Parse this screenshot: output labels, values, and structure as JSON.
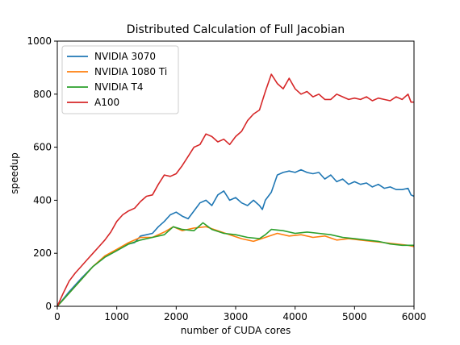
{
  "chart_data": {
    "type": "line",
    "title": "Distributed Calculation of Full Jacobian",
    "xlabel": "number of CUDA cores",
    "ylabel": "speedup",
    "xlim": [
      0,
      6000
    ],
    "ylim": [
      0,
      1000
    ],
    "xticks": [
      "0",
      "1000",
      "2000",
      "3000",
      "4000",
      "5000",
      "6000"
    ],
    "yticks": [
      "0",
      "200",
      "400",
      "600",
      "800",
      "1000"
    ],
    "grid": false,
    "legend_position": "upper-left",
    "series": [
      {
        "name": "NVIDIA 3070",
        "color": "#1f77b4",
        "x": [
          0,
          200,
          400,
          600,
          800,
          1000,
          1200,
          1300,
          1400,
          1500,
          1600,
          1700,
          1800,
          1900,
          2000,
          2100,
          2200,
          2300,
          2400,
          2500,
          2600,
          2700,
          2800,
          2900,
          3000,
          3100,
          3200,
          3300,
          3400,
          3450,
          3500,
          3600,
          3700,
          3800,
          3900,
          4000,
          4100,
          4200,
          4300,
          4400,
          4500,
          4600,
          4700,
          4800,
          4900,
          5000,
          5100,
          5200,
          5300,
          5400,
          5500,
          5600,
          5700,
          5800,
          5900,
          5950,
          6000
        ],
        "y": [
          0,
          55,
          105,
          150,
          185,
          210,
          235,
          240,
          265,
          270,
          275,
          300,
          320,
          345,
          355,
          340,
          330,
          360,
          390,
          400,
          380,
          420,
          435,
          400,
          410,
          390,
          380,
          400,
          380,
          365,
          400,
          430,
          495,
          505,
          510,
          505,
          515,
          505,
          500,
          505,
          480,
          495,
          470,
          480,
          460,
          470,
          460,
          465,
          450,
          460,
          445,
          450,
          440,
          440,
          445,
          420,
          415
        ]
      },
      {
        "name": "NVIDIA 1080 Ti",
        "color": "#ff7f0e",
        "x": [
          0,
          200,
          400,
          600,
          800,
          1000,
          1200,
          1400,
          1600,
          1800,
          1950,
          2100,
          2300,
          2500,
          2700,
          2900,
          3100,
          3300,
          3500,
          3700,
          3900,
          4100,
          4300,
          4500,
          4700,
          4900,
          5100,
          5300,
          5500,
          5700,
          5900,
          6000
        ],
        "y": [
          0,
          50,
          100,
          150,
          190,
          215,
          240,
          260,
          260,
          280,
          300,
          285,
          295,
          300,
          285,
          270,
          255,
          245,
          260,
          275,
          265,
          270,
          260,
          265,
          250,
          255,
          250,
          245,
          240,
          235,
          230,
          225
        ]
      },
      {
        "name": "NVIDIA T4",
        "color": "#2ca02c",
        "x": [
          0,
          200,
          400,
          600,
          800,
          1000,
          1200,
          1400,
          1600,
          1800,
          1950,
          2100,
          2300,
          2450,
          2600,
          2800,
          3000,
          3200,
          3400,
          3500,
          3600,
          3800,
          4000,
          4200,
          4400,
          4600,
          4800,
          5000,
          5200,
          5400,
          5600,
          5800,
          6000
        ],
        "y": [
          0,
          50,
          100,
          150,
          185,
          210,
          235,
          250,
          260,
          270,
          300,
          290,
          285,
          315,
          290,
          275,
          270,
          260,
          255,
          270,
          290,
          285,
          275,
          280,
          275,
          270,
          260,
          255,
          250,
          245,
          235,
          230,
          230
        ]
      },
      {
        "name": "A100",
        "color": "#d62728",
        "x": [
          0,
          100,
          200,
          300,
          400,
          500,
          600,
          700,
          800,
          900,
          1000,
          1100,
          1200,
          1300,
          1400,
          1500,
          1600,
          1700,
          1800,
          1900,
          2000,
          2100,
          2200,
          2300,
          2400,
          2500,
          2600,
          2700,
          2800,
          2900,
          3000,
          3100,
          3200,
          3300,
          3400,
          3500,
          3600,
          3700,
          3800,
          3900,
          4000,
          4100,
          4200,
          4300,
          4400,
          4500,
          4600,
          4700,
          4800,
          4900,
          5000,
          5100,
          5200,
          5300,
          5400,
          5500,
          5600,
          5700,
          5800,
          5900,
          5950,
          6000
        ],
        "y": [
          0,
          50,
          95,
          125,
          150,
          175,
          200,
          225,
          250,
          280,
          320,
          345,
          360,
          370,
          395,
          415,
          420,
          460,
          495,
          490,
          500,
          530,
          565,
          600,
          610,
          650,
          640,
          620,
          630,
          610,
          640,
          660,
          700,
          725,
          740,
          810,
          875,
          840,
          820,
          860,
          820,
          800,
          810,
          790,
          800,
          780,
          780,
          800,
          790,
          780,
          785,
          780,
          790,
          775,
          785,
          780,
          775,
          790,
          780,
          800,
          770,
          770
        ]
      }
    ]
  }
}
